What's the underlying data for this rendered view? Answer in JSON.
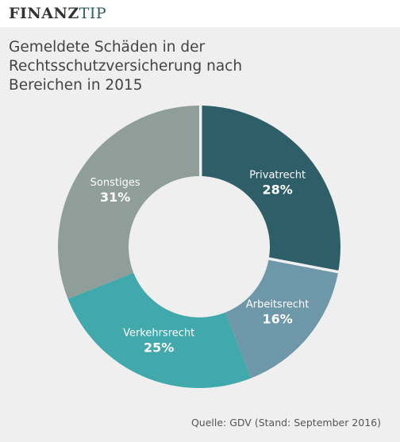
{
  "brand": {
    "part1": "FINANZ",
    "part2": "TIP"
  },
  "title_lines": [
    "Gemeldete Schäden in der",
    "Rechtsschutzversicherung nach",
    "Bereichen in 2015"
  ],
  "source": "Quelle: GDV (Stand: September 2016)",
  "colors": {
    "privatrecht": "#2e5e68",
    "arbeitsrecht": "#6e97a9",
    "verkehrsrecht": "#41a8ab",
    "sonstiges": "#8f9e98",
    "background": "#efefef"
  },
  "chart_data": {
    "type": "pie",
    "variant": "donut",
    "title": "Gemeldete Schäden in der Rechtsschutzversicherung nach Bereichen in 2015",
    "slices": [
      {
        "label": "Privatrecht",
        "value": 28,
        "display": "28%",
        "color": "#2e5e68"
      },
      {
        "label": "Arbeitsrecht",
        "value": 16,
        "display": "16%",
        "color": "#6e97a9"
      },
      {
        "label": "Verkehrsrecht",
        "value": 25,
        "display": "25%",
        "color": "#41a8ab"
      },
      {
        "label": "Sonstiges",
        "value": 31,
        "display": "31%",
        "color": "#8f9e98"
      }
    ],
    "start_angle_deg": 0,
    "direction": "clockwise",
    "legend": "none"
  }
}
